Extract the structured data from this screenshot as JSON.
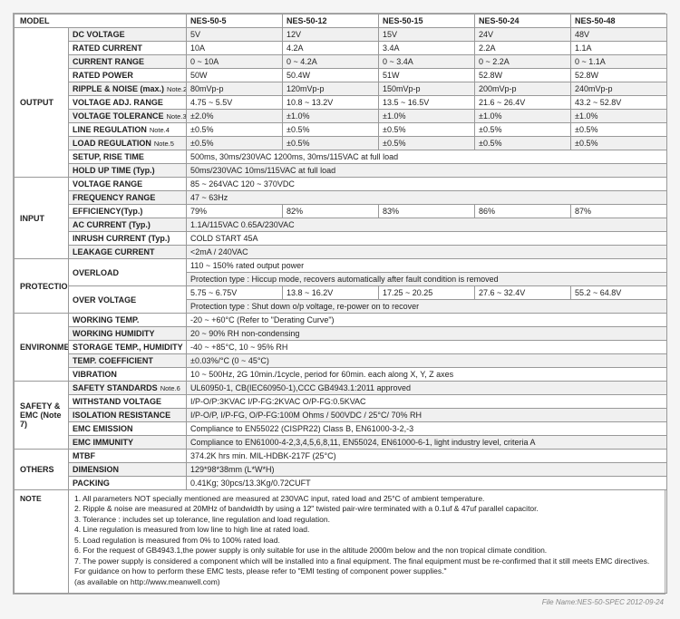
{
  "footer": "File Name:NES-50-SPEC   2012-09-24",
  "header": {
    "label": "MODEL",
    "models": [
      "NES-50-5",
      "NES-50-12",
      "NES-50-15",
      "NES-50-24",
      "NES-50-48"
    ]
  },
  "sections": [
    {
      "name": "OUTPUT",
      "rows": [
        {
          "p": "DC VOLTAGE",
          "v": [
            "5V",
            "12V",
            "15V",
            "24V",
            "48V"
          ],
          "band": true
        },
        {
          "p": "RATED CURRENT",
          "v": [
            "10A",
            "4.2A",
            "3.4A",
            "2.2A",
            "1.1A"
          ]
        },
        {
          "p": "CURRENT RANGE",
          "v": [
            "0 ~ 10A",
            "0 ~ 4.2A",
            "0 ~ 3.4A",
            "0 ~ 2.2A",
            "0 ~ 1.1A"
          ],
          "band": true
        },
        {
          "p": "RATED POWER",
          "v": [
            "50W",
            "50.4W",
            "51W",
            "52.8W",
            "52.8W"
          ]
        },
        {
          "p": "RIPPLE & NOISE (max.)",
          "sub": "Note.2",
          "v": [
            "80mVp-p",
            "120mVp-p",
            "150mVp-p",
            "200mVp-p",
            "240mVp-p"
          ],
          "band": true
        },
        {
          "p": "VOLTAGE ADJ. RANGE",
          "v": [
            "4.75 ~ 5.5V",
            "10.8 ~ 13.2V",
            "13.5 ~ 16.5V",
            "21.6 ~ 26.4V",
            "43.2 ~ 52.8V"
          ]
        },
        {
          "p": "VOLTAGE TOLERANCE",
          "sub": "Note.3",
          "v": [
            "±2.0%",
            "±1.0%",
            "±1.0%",
            "±1.0%",
            "±1.0%"
          ],
          "band": true
        },
        {
          "p": "LINE REGULATION",
          "sub": "Note.4",
          "v": [
            "±0.5%",
            "±0.5%",
            "±0.5%",
            "±0.5%",
            "±0.5%"
          ]
        },
        {
          "p": "LOAD REGULATION",
          "sub": "Note.5",
          "v": [
            "±0.5%",
            "±0.5%",
            "±0.5%",
            "±0.5%",
            "±0.5%"
          ],
          "band": true
        },
        {
          "p": "SETUP, RISE TIME",
          "span": "500ms, 30ms/230VAC          1200ms, 30ms/115VAC at full load"
        },
        {
          "p": "HOLD UP TIME (Typ.)",
          "span": "50ms/230VAC        10ms/115VAC at full load",
          "band": true
        }
      ]
    },
    {
      "name": "INPUT",
      "rows": [
        {
          "p": "VOLTAGE RANGE",
          "span": "85 ~ 264VAC     120 ~ 370VDC"
        },
        {
          "p": "FREQUENCY RANGE",
          "span": "47 ~ 63Hz",
          "band": true
        },
        {
          "p": "EFFICIENCY(Typ.)",
          "v": [
            "79%",
            "82%",
            "83%",
            "86%",
            "87%"
          ]
        },
        {
          "p": "AC CURRENT (Typ.)",
          "span": "1.1A/115VAC        0.65A/230VAC",
          "band": true
        },
        {
          "p": "INRUSH CURRENT (Typ.)",
          "span": "COLD START 45A"
        },
        {
          "p": "LEAKAGE CURRENT",
          "span": "<2mA / 240VAC",
          "band": true
        }
      ]
    },
    {
      "name": "PROTECTION",
      "rows": [
        {
          "p": "OVERLOAD",
          "rowspan": 2,
          "span": "110 ~ 150% rated output power"
        },
        {
          "span": "Protection type : Hiccup mode, recovers automatically after fault condition is removed",
          "band": true
        },
        {
          "p": "OVER VOLTAGE",
          "rowspan": 2,
          "v": [
            "5.75 ~ 6.75V",
            "13.8 ~ 16.2V",
            "17.25 ~ 20.25",
            "27.6 ~ 32.4V",
            "55.2 ~ 64.8V"
          ]
        },
        {
          "span": "Protection type : Shut down o/p voltage, re-power on to recover",
          "band": true
        }
      ]
    },
    {
      "name": "ENVIRONMENT",
      "rows": [
        {
          "p": "WORKING TEMP.",
          "span": "-20 ~ +60°C (Refer to \"Derating Curve\")"
        },
        {
          "p": "WORKING HUMIDITY",
          "span": "20 ~ 90% RH non-condensing",
          "band": true
        },
        {
          "p": "STORAGE TEMP., HUMIDITY",
          "span": "-40 ~ +85°C, 10 ~ 95% RH"
        },
        {
          "p": "TEMP. COEFFICIENT",
          "span": "±0.03%/°C (0 ~ 45°C)",
          "band": true
        },
        {
          "p": "VIBRATION",
          "span": "10 ~ 500Hz, 2G 10min./1cycle, period for 60min. each along X, Y, Z axes"
        }
      ]
    },
    {
      "name": "SAFETY & EMC (Note 7)",
      "rows": [
        {
          "p": "SAFETY STANDARDS",
          "sub": "Note.6",
          "span": "UL60950-1, CB(IEC60950-1),CCC GB4943.1:2011 approved",
          "band": true
        },
        {
          "p": "WITHSTAND VOLTAGE",
          "span": "I/P-O/P:3KVAC    I/P-FG:2KVAC    O/P-FG:0.5KVAC"
        },
        {
          "p": "ISOLATION RESISTANCE",
          "span": "I/P-O/P, I/P-FG, O/P-FG:100M Ohms / 500VDC / 25°C/ 70% RH",
          "band": true
        },
        {
          "p": "EMC EMISSION",
          "span": "Compliance to  EN55022 (CISPR22) Class B, EN61000-3-2,-3"
        },
        {
          "p": "EMC IMMUNITY",
          "span": "Compliance to EN61000-4-2,3,4,5,6,8,11, EN55024, EN61000-6-1, light industry level, criteria A",
          "band": true
        }
      ]
    },
    {
      "name": "OTHERS",
      "rows": [
        {
          "p": "MTBF",
          "span": "374.2K hrs min.      MIL-HDBK-217F (25°C)"
        },
        {
          "p": "DIMENSION",
          "span": "129*98*38mm (L*W*H)",
          "band": true
        },
        {
          "p": "PACKING",
          "span": "0.41Kg; 30pcs/13.3Kg/0.72CUFT"
        }
      ]
    }
  ],
  "note_label": "NOTE",
  "notes": [
    "1. All parameters NOT specially mentioned are measured at 230VAC input, rated load and 25°C of ambient temperature.",
    "2. Ripple & noise are measured at 20MHz of bandwidth by using a 12\" twisted pair-wire terminated with a 0.1uf & 47uf parallel capacitor.",
    "3. Tolerance : includes set up tolerance, line regulation and load regulation.",
    "4. Line regulation is measured from low line to high line at rated load.",
    "5. Load regulation is measured from 0% to 100% rated load.",
    "6. For the request of GB4943.1,the power supply is only suitable for use in the altitude 2000m below and the non tropical climate condition.",
    "7. The power supply is considered a component which will be installed into a final equipment. The final equipment must be re-confirmed that it still meets EMC directives. For guidance on how to perform these EMC tests, please refer to \"EMI testing of component power supplies.\"",
    "    (as available on http://www.meanwell.com)"
  ]
}
